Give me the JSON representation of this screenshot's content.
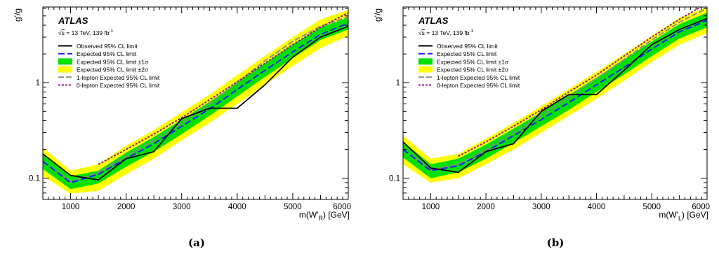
{
  "panels": [
    {
      "caption": "(a)",
      "xlabel_main": "m(W'",
      "xlabel_sub": "R",
      "xlabel_end": ") [GeV]",
      "ylabel": "g'/g"
    },
    {
      "caption": "(b)",
      "xlabel_main": "m(W'",
      "xlabel_sub": "L",
      "xlabel_end": ") [GeV]",
      "ylabel": "g'/g"
    }
  ],
  "header": {
    "experiment": "ATLAS",
    "energy_prefix": "s",
    "energy_text": " = 13 TeV, 139 fb",
    "energy_sup": "-1"
  },
  "legend": [
    {
      "label": "Observed 95% CL limit",
      "kind": "line",
      "color": "#000000",
      "dash": ""
    },
    {
      "label": "Expected 95% CL limit",
      "kind": "line",
      "color": "#1a1aff",
      "dash": "9,4"
    },
    {
      "label": "Expected 95% CL limit ±1σ",
      "kind": "box",
      "color": "#00e000"
    },
    {
      "label": "Expected 95% CL limit ±2σ",
      "kind": "box",
      "color": "#ffff00"
    },
    {
      "label": "1-lepton Expected 95% CL limit",
      "kind": "line",
      "color": "#8c8c8c",
      "dash": "8,3"
    },
    {
      "label": "0-lepton Expected 95% CL limit",
      "kind": "line",
      "color": "#8a1a8a",
      "dash": "3,2"
    }
  ],
  "chart_data": [
    {
      "type": "line",
      "xlabel": "m(W'_R) [GeV]",
      "ylabel": "g'/g",
      "xlim": [
        500,
        6000
      ],
      "ylim": [
        0.06,
        6.2
      ],
      "ylog": true,
      "xticks": [
        1000,
        2000,
        3000,
        4000,
        5000,
        6000
      ],
      "yticks": [
        0.1,
        1
      ],
      "band2_lo": [
        [
          500,
          0.105
        ],
        [
          1000,
          0.069
        ],
        [
          1500,
          0.074
        ],
        [
          2000,
          0.11
        ],
        [
          2500,
          0.16
        ],
        [
          3000,
          0.25
        ],
        [
          3500,
          0.38
        ],
        [
          4000,
          0.6
        ],
        [
          4500,
          0.95
        ],
        [
          5000,
          1.5
        ],
        [
          5500,
          2.3
        ],
        [
          6000,
          3.1
        ]
      ],
      "band2_hi": [
        [
          500,
          0.21
        ],
        [
          1000,
          0.12
        ],
        [
          1500,
          0.14
        ],
        [
          2000,
          0.22
        ],
        [
          2500,
          0.32
        ],
        [
          3000,
          0.49
        ],
        [
          3500,
          0.75
        ],
        [
          4000,
          1.2
        ],
        [
          4500,
          1.9
        ],
        [
          5000,
          3.0
        ],
        [
          5500,
          4.6
        ],
        [
          6000,
          5.8
        ]
      ],
      "band1_lo": [
        [
          500,
          0.125
        ],
        [
          1000,
          0.077
        ],
        [
          1500,
          0.088
        ],
        [
          2000,
          0.132
        ],
        [
          2500,
          0.19
        ],
        [
          3000,
          0.29
        ],
        [
          3500,
          0.45
        ],
        [
          4000,
          0.72
        ],
        [
          4500,
          1.15
        ],
        [
          5000,
          1.8
        ],
        [
          5500,
          2.8
        ],
        [
          6000,
          3.6
        ]
      ],
      "band1_hi": [
        [
          500,
          0.18
        ],
        [
          1000,
          0.105
        ],
        [
          1500,
          0.12
        ],
        [
          2000,
          0.185
        ],
        [
          2500,
          0.27
        ],
        [
          3000,
          0.41
        ],
        [
          3500,
          0.63
        ],
        [
          4000,
          1.0
        ],
        [
          4500,
          1.6
        ],
        [
          5000,
          2.5
        ],
        [
          5500,
          3.8
        ],
        [
          6000,
          4.8
        ]
      ],
      "series": [
        {
          "name": "Observed 95% CL limit",
          "values": [
            [
              500,
              0.18
            ],
            [
              1000,
              0.107
            ],
            [
              1500,
              0.096
            ],
            [
              2000,
              0.16
            ],
            [
              2500,
              0.19
            ],
            [
              3000,
              0.42
            ],
            [
              3500,
              0.54
            ],
            [
              4000,
              0.54
            ],
            [
              4500,
              0.95
            ],
            [
              5000,
              1.85
            ],
            [
              5500,
              3.0
            ],
            [
              6000,
              3.9
            ]
          ]
        },
        {
          "name": "Expected 95% CL limit",
          "values": [
            [
              500,
              0.15
            ],
            [
              1000,
              0.09
            ],
            [
              1500,
              0.11
            ],
            [
              2000,
              0.16
            ],
            [
              2500,
              0.23
            ],
            [
              3000,
              0.35
            ],
            [
              3500,
              0.53
            ],
            [
              4000,
              0.85
            ],
            [
              4500,
              1.35
            ],
            [
              5000,
              2.1
            ],
            [
              5500,
              3.2
            ],
            [
              6000,
              4.2
            ]
          ]
        },
        {
          "name": "1-lepton Expected 95% CL limit",
          "values": [
            [
              500,
              0.15
            ],
            [
              1000,
              0.092
            ],
            [
              1500,
              0.115
            ],
            [
              2000,
              0.17
            ],
            [
              2500,
              0.25
            ],
            [
              3000,
              0.38
            ],
            [
              3500,
              0.6
            ],
            [
              4000,
              1.0
            ],
            [
              4500,
              1.7
            ],
            [
              5000,
              2.7
            ],
            [
              5500,
              3.9
            ],
            [
              6000,
              4.9
            ]
          ]
        },
        {
          "name": "0-lepton Expected 95% CL limit",
          "values": [
            [
              1500,
              0.14
            ],
            [
              2000,
              0.2
            ],
            [
              2500,
              0.29
            ],
            [
              3000,
              0.43
            ],
            [
              3500,
              0.66
            ],
            [
              4000,
              1.02
            ],
            [
              4500,
              1.6
            ],
            [
              5000,
              2.5
            ],
            [
              5500,
              3.8
            ],
            [
              6000,
              5.4
            ]
          ]
        }
      ]
    },
    {
      "type": "line",
      "xlabel": "m(W'_L) [GeV]",
      "ylabel": "g'/g",
      "xlim": [
        500,
        6000
      ],
      "ylim": [
        0.06,
        6.2
      ],
      "ylog": true,
      "xticks": [
        1000,
        2000,
        3000,
        4000,
        5000,
        6000
      ],
      "yticks": [
        0.1,
        1
      ],
      "band2_lo": [
        [
          500,
          0.14
        ],
        [
          1000,
          0.09
        ],
        [
          1500,
          0.1
        ],
        [
          2000,
          0.14
        ],
        [
          2500,
          0.2
        ],
        [
          3000,
          0.3
        ],
        [
          3500,
          0.45
        ],
        [
          4000,
          0.68
        ],
        [
          4500,
          1.05
        ],
        [
          5000,
          1.65
        ],
        [
          5500,
          2.5
        ],
        [
          6000,
          3.3
        ]
      ],
      "band2_hi": [
        [
          500,
          0.28
        ],
        [
          1000,
          0.16
        ],
        [
          1500,
          0.18
        ],
        [
          2000,
          0.26
        ],
        [
          2500,
          0.38
        ],
        [
          3000,
          0.57
        ],
        [
          3500,
          0.86
        ],
        [
          4000,
          1.3
        ],
        [
          4500,
          2.0
        ],
        [
          5000,
          3.1
        ],
        [
          5500,
          4.8
        ],
        [
          6000,
          6.2
        ]
      ],
      "band1_lo": [
        [
          500,
          0.165
        ],
        [
          1000,
          0.1
        ],
        [
          1500,
          0.115
        ],
        [
          2000,
          0.16
        ],
        [
          2500,
          0.235
        ],
        [
          3000,
          0.35
        ],
        [
          3500,
          0.52
        ],
        [
          4000,
          0.8
        ],
        [
          4500,
          1.22
        ],
        [
          5000,
          1.9
        ],
        [
          5500,
          2.9
        ],
        [
          6000,
          3.8
        ]
      ],
      "band1_hi": [
        [
          500,
          0.24
        ],
        [
          1000,
          0.14
        ],
        [
          1500,
          0.16
        ],
        [
          2000,
          0.225
        ],
        [
          2500,
          0.33
        ],
        [
          3000,
          0.49
        ],
        [
          3500,
          0.74
        ],
        [
          4000,
          1.13
        ],
        [
          4500,
          1.75
        ],
        [
          5000,
          2.7
        ],
        [
          5500,
          4.1
        ],
        [
          6000,
          5.4
        ]
      ],
      "series": [
        {
          "name": "Observed 95% CL limit",
          "values": [
            [
              500,
              0.24
            ],
            [
              1000,
              0.128
            ],
            [
              1500,
              0.115
            ],
            [
              2000,
              0.19
            ],
            [
              2500,
              0.23
            ],
            [
              3000,
              0.5
            ],
            [
              3500,
              0.75
            ],
            [
              4000,
              0.75
            ],
            [
              4500,
              1.35
            ],
            [
              5000,
              2.5
            ],
            [
              5500,
              3.6
            ],
            [
              6000,
              4.7
            ]
          ]
        },
        {
          "name": "Expected 95% CL limit",
          "values": [
            [
              500,
              0.2
            ],
            [
              1000,
              0.12
            ],
            [
              1500,
              0.135
            ],
            [
              2000,
              0.19
            ],
            [
              2500,
              0.28
            ],
            [
              3000,
              0.41
            ],
            [
              3500,
              0.62
            ],
            [
              4000,
              0.95
            ],
            [
              4500,
              1.45
            ],
            [
              5000,
              2.25
            ],
            [
              5500,
              3.4
            ],
            [
              6000,
              4.5
            ]
          ]
        },
        {
          "name": "1-lepton Expected 95% CL limit",
          "values": [
            [
              500,
              0.2
            ],
            [
              1000,
              0.123
            ],
            [
              1500,
              0.14
            ],
            [
              2000,
              0.2
            ],
            [
              2500,
              0.3
            ],
            [
              3000,
              0.45
            ],
            [
              3500,
              0.7
            ],
            [
              4000,
              1.1
            ],
            [
              4500,
              1.75
            ],
            [
              5000,
              2.8
            ],
            [
              5500,
              4.3
            ],
            [
              6000,
              6.0
            ]
          ]
        },
        {
          "name": "0-lepton Expected 95% CL limit",
          "values": [
            [
              1500,
              0.17
            ],
            [
              2000,
              0.24
            ],
            [
              2500,
              0.35
            ],
            [
              3000,
              0.52
            ],
            [
              3500,
              0.8
            ],
            [
              4000,
              1.2
            ],
            [
              4500,
              1.9
            ],
            [
              5000,
              3.0
            ],
            [
              5500,
              4.6
            ],
            [
              6000,
              6.8
            ]
          ]
        }
      ]
    }
  ]
}
